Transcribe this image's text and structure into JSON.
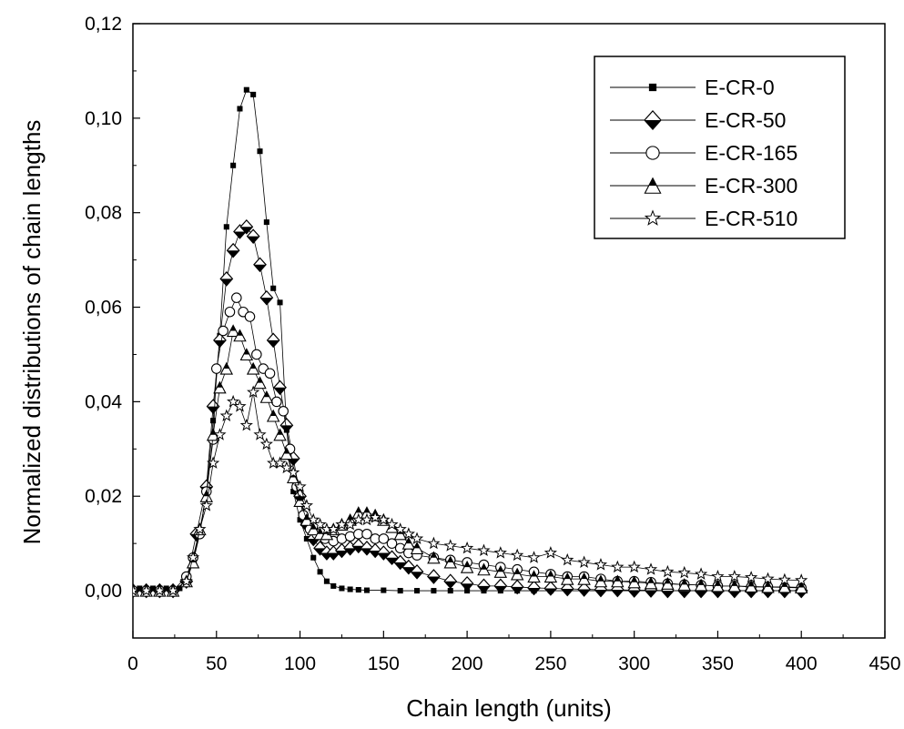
{
  "chart_data": {
    "type": "scatter",
    "xlabel": "Chain length (units)",
    "ylabel": "Normalized distributions of chain lengths",
    "xlim": [
      0,
      450
    ],
    "ylim": [
      -0.01,
      0.12
    ],
    "xticks": [
      0,
      50,
      100,
      150,
      200,
      250,
      300,
      350,
      400,
      450
    ],
    "xtick_labels": [
      "0",
      "50",
      "100",
      "150",
      "200",
      "250",
      "300",
      "350",
      "400",
      "450"
    ],
    "yticks": [
      0.0,
      0.02,
      0.04,
      0.06,
      0.08,
      0.1,
      0.12
    ],
    "ytick_labels": [
      "0,00",
      "0,02",
      "0,04",
      "0,06",
      "0,08",
      "0,10",
      "0,12"
    ],
    "grid": false,
    "legend_position": "top-right",
    "series": [
      {
        "name": "E-CR-0",
        "marker": "square-filled",
        "points": [
          [
            0,
            0
          ],
          [
            4,
            0.0005
          ],
          [
            8,
            0.0005
          ],
          [
            12,
            0.0005
          ],
          [
            16,
            0.0005
          ],
          [
            20,
            0.0005
          ],
          [
            24,
            0.0005
          ],
          [
            28,
            0.0005
          ],
          [
            32,
            0.003
          ],
          [
            36,
            0.006
          ],
          [
            40,
            0.012
          ],
          [
            44,
            0.021
          ],
          [
            48,
            0.036
          ],
          [
            52,
            0.054
          ],
          [
            56,
            0.077
          ],
          [
            60,
            0.09
          ],
          [
            64,
            0.102
          ],
          [
            68,
            0.106
          ],
          [
            72,
            0.105
          ],
          [
            76,
            0.093
          ],
          [
            80,
            0.078
          ],
          [
            84,
            0.064
          ],
          [
            88,
            0.061
          ],
          [
            92,
            0.034
          ],
          [
            96,
            0.021
          ],
          [
            100,
            0.015
          ],
          [
            104,
            0.011
          ],
          [
            108,
            0.007
          ],
          [
            112,
            0.004
          ],
          [
            116,
            0.002
          ],
          [
            120,
            0.001
          ],
          [
            125,
            0.0005
          ],
          [
            130,
            0.0003
          ],
          [
            135,
            0.0002
          ],
          [
            140,
            0.0001
          ],
          [
            150,
            0.0001
          ],
          [
            160,
            0
          ],
          [
            170,
            0
          ],
          [
            180,
            0
          ],
          [
            190,
            0
          ],
          [
            200,
            0
          ],
          [
            210,
            0
          ],
          [
            220,
            0
          ],
          [
            230,
            0
          ],
          [
            240,
            0
          ],
          [
            250,
            0
          ],
          [
            260,
            0
          ],
          [
            270,
            0
          ],
          [
            280,
            0
          ],
          [
            290,
            0
          ],
          [
            300,
            0
          ],
          [
            310,
            0
          ],
          [
            320,
            0
          ],
          [
            330,
            0
          ],
          [
            340,
            0
          ],
          [
            350,
            0
          ],
          [
            360,
            0
          ],
          [
            370,
            0
          ],
          [
            380,
            0
          ],
          [
            390,
            0
          ],
          [
            400,
            0
          ]
        ]
      },
      {
        "name": "E-CR-50",
        "marker": "diamond-half",
        "points": [
          [
            0,
            0
          ],
          [
            8,
            0
          ],
          [
            16,
            0
          ],
          [
            24,
            0
          ],
          [
            32,
            0.002
          ],
          [
            38,
            0.012
          ],
          [
            44,
            0.022
          ],
          [
            48,
            0.039
          ],
          [
            52,
            0.053
          ],
          [
            56,
            0.066
          ],
          [
            60,
            0.072
          ],
          [
            64,
            0.076
          ],
          [
            68,
            0.077
          ],
          [
            72,
            0.075
          ],
          [
            76,
            0.069
          ],
          [
            80,
            0.062
          ],
          [
            84,
            0.053
          ],
          [
            88,
            0.043
          ],
          [
            92,
            0.035
          ],
          [
            96,
            0.028
          ],
          [
            100,
            0.02
          ],
          [
            104,
            0.014
          ],
          [
            108,
            0.011
          ],
          [
            112,
            0.009
          ],
          [
            116,
            0.008
          ],
          [
            120,
            0.008
          ],
          [
            125,
            0.0085
          ],
          [
            130,
            0.009
          ],
          [
            135,
            0.0095
          ],
          [
            140,
            0.009
          ],
          [
            145,
            0.0085
          ],
          [
            150,
            0.008
          ],
          [
            155,
            0.007
          ],
          [
            160,
            0.006
          ],
          [
            165,
            0.005
          ],
          [
            170,
            0.004
          ],
          [
            180,
            0.003
          ],
          [
            190,
            0.002
          ],
          [
            200,
            0.0015
          ],
          [
            210,
            0.001
          ],
          [
            220,
            0.001
          ],
          [
            230,
            0.0008
          ],
          [
            240,
            0.0006
          ],
          [
            250,
            0.0005
          ],
          [
            260,
            0.0004
          ],
          [
            270,
            0.0003
          ],
          [
            280,
            0.0002
          ],
          [
            290,
            0.0002
          ],
          [
            300,
            0.0001
          ],
          [
            310,
            0.0001
          ],
          [
            320,
            0
          ],
          [
            330,
            0
          ],
          [
            340,
            0
          ],
          [
            350,
            0
          ],
          [
            360,
            0
          ],
          [
            370,
            0
          ],
          [
            380,
            0
          ],
          [
            390,
            0
          ],
          [
            400,
            0
          ]
        ]
      },
      {
        "name": "E-CR-165",
        "marker": "circle-open",
        "points": [
          [
            0,
            0
          ],
          [
            8,
            0
          ],
          [
            16,
            0
          ],
          [
            24,
            0
          ],
          [
            32,
            0.003
          ],
          [
            36,
            0.007
          ],
          [
            40,
            0.012
          ],
          [
            44,
            0.021
          ],
          [
            48,
            0.032
          ],
          [
            50,
            0.047
          ],
          [
            54,
            0.055
          ],
          [
            58,
            0.059
          ],
          [
            62,
            0.062
          ],
          [
            66,
            0.059
          ],
          [
            70,
            0.058
          ],
          [
            74,
            0.05
          ],
          [
            78,
            0.047
          ],
          [
            82,
            0.046
          ],
          [
            86,
            0.04
          ],
          [
            90,
            0.038
          ],
          [
            94,
            0.03
          ],
          [
            98,
            0.022
          ],
          [
            102,
            0.016
          ],
          [
            106,
            0.013
          ],
          [
            110,
            0.012
          ],
          [
            115,
            0.011
          ],
          [
            120,
            0.0105
          ],
          [
            125,
            0.011
          ],
          [
            130,
            0.0115
          ],
          [
            135,
            0.012
          ],
          [
            140,
            0.012
          ],
          [
            145,
            0.011
          ],
          [
            150,
            0.011
          ],
          [
            155,
            0.01
          ],
          [
            160,
            0.009
          ],
          [
            165,
            0.008
          ],
          [
            170,
            0.0075
          ],
          [
            180,
            0.007
          ],
          [
            190,
            0.0065
          ],
          [
            200,
            0.006
          ],
          [
            210,
            0.0055
          ],
          [
            220,
            0.005
          ],
          [
            230,
            0.0045
          ],
          [
            240,
            0.004
          ],
          [
            250,
            0.0035
          ],
          [
            260,
            0.003
          ],
          [
            270,
            0.003
          ],
          [
            280,
            0.0025
          ],
          [
            290,
            0.002
          ],
          [
            300,
            0.002
          ],
          [
            310,
            0.0018
          ],
          [
            320,
            0.0015
          ],
          [
            330,
            0.0013
          ],
          [
            340,
            0.0012
          ],
          [
            350,
            0.001
          ],
          [
            360,
            0.001
          ],
          [
            370,
            0.0008
          ],
          [
            380,
            0.0008
          ],
          [
            390,
            0.0007
          ],
          [
            400,
            0.0006
          ]
        ]
      },
      {
        "name": "E-CR-300",
        "marker": "triangle-half",
        "points": [
          [
            0,
            0
          ],
          [
            8,
            0
          ],
          [
            16,
            0
          ],
          [
            24,
            0
          ],
          [
            32,
            0.002
          ],
          [
            36,
            0.006
          ],
          [
            40,
            0.013
          ],
          [
            44,
            0.02
          ],
          [
            48,
            0.033
          ],
          [
            52,
            0.043
          ],
          [
            56,
            0.047
          ],
          [
            60,
            0.055
          ],
          [
            64,
            0.054
          ],
          [
            68,
            0.05
          ],
          [
            72,
            0.047
          ],
          [
            76,
            0.044
          ],
          [
            80,
            0.041
          ],
          [
            84,
            0.037
          ],
          [
            88,
            0.033
          ],
          [
            92,
            0.029
          ],
          [
            96,
            0.024
          ],
          [
            100,
            0.019
          ],
          [
            104,
            0.015
          ],
          [
            108,
            0.013
          ],
          [
            112,
            0.012
          ],
          [
            116,
            0.012
          ],
          [
            120,
            0.013
          ],
          [
            125,
            0.014
          ],
          [
            130,
            0.015
          ],
          [
            135,
            0.0165
          ],
          [
            140,
            0.0165
          ],
          [
            145,
            0.016
          ],
          [
            150,
            0.015
          ],
          [
            155,
            0.0135
          ],
          [
            160,
            0.012
          ],
          [
            165,
            0.01
          ],
          [
            170,
            0.009
          ],
          [
            180,
            0.007
          ],
          [
            190,
            0.006
          ],
          [
            200,
            0.005
          ],
          [
            210,
            0.0045
          ],
          [
            220,
            0.004
          ],
          [
            230,
            0.0035
          ],
          [
            240,
            0.003
          ],
          [
            250,
            0.003
          ],
          [
            260,
            0.0025
          ],
          [
            270,
            0.0025
          ],
          [
            280,
            0.002
          ],
          [
            290,
            0.002
          ],
          [
            300,
            0.0018
          ],
          [
            310,
            0.0016
          ],
          [
            320,
            0.0015
          ],
          [
            330,
            0.0013
          ],
          [
            340,
            0.0012
          ],
          [
            350,
            0.001
          ],
          [
            360,
            0.001
          ],
          [
            370,
            0.0009
          ],
          [
            380,
            0.0008
          ],
          [
            390,
            0.0008
          ],
          [
            400,
            0.0007
          ]
        ]
      },
      {
        "name": "E-CR-510",
        "marker": "star-open",
        "points": [
          [
            0,
            0
          ],
          [
            8,
            0
          ],
          [
            16,
            0
          ],
          [
            24,
            0
          ],
          [
            32,
            0.002
          ],
          [
            36,
            0.007
          ],
          [
            40,
            0.013
          ],
          [
            44,
            0.018
          ],
          [
            48,
            0.027
          ],
          [
            52,
            0.033
          ],
          [
            56,
            0.037
          ],
          [
            60,
            0.04
          ],
          [
            64,
            0.039
          ],
          [
            68,
            0.035
          ],
          [
            72,
            0.042
          ],
          [
            76,
            0.033
          ],
          [
            80,
            0.031
          ],
          [
            84,
            0.027
          ],
          [
            88,
            0.027
          ],
          [
            92,
            0.026
          ],
          [
            96,
            0.025
          ],
          [
            100,
            0.022
          ],
          [
            104,
            0.018
          ],
          [
            108,
            0.015
          ],
          [
            112,
            0.014
          ],
          [
            116,
            0.013
          ],
          [
            120,
            0.013
          ],
          [
            125,
            0.014
          ],
          [
            130,
            0.014
          ],
          [
            135,
            0.015
          ],
          [
            140,
            0.015
          ],
          [
            145,
            0.0155
          ],
          [
            150,
            0.015
          ],
          [
            155,
            0.014
          ],
          [
            160,
            0.013
          ],
          [
            165,
            0.012
          ],
          [
            170,
            0.011
          ],
          [
            180,
            0.01
          ],
          [
            190,
            0.0095
          ],
          [
            200,
            0.009
          ],
          [
            210,
            0.0085
          ],
          [
            220,
            0.008
          ],
          [
            230,
            0.0075
          ],
          [
            240,
            0.007
          ],
          [
            250,
            0.008
          ],
          [
            260,
            0.0065
          ],
          [
            270,
            0.006
          ],
          [
            280,
            0.0055
          ],
          [
            290,
            0.005
          ],
          [
            300,
            0.005
          ],
          [
            310,
            0.0045
          ],
          [
            320,
            0.004
          ],
          [
            330,
            0.0038
          ],
          [
            340,
            0.0035
          ],
          [
            350,
            0.003
          ],
          [
            360,
            0.003
          ],
          [
            370,
            0.0028
          ],
          [
            380,
            0.0025
          ],
          [
            390,
            0.0023
          ],
          [
            400,
            0.0022
          ]
        ]
      }
    ]
  }
}
